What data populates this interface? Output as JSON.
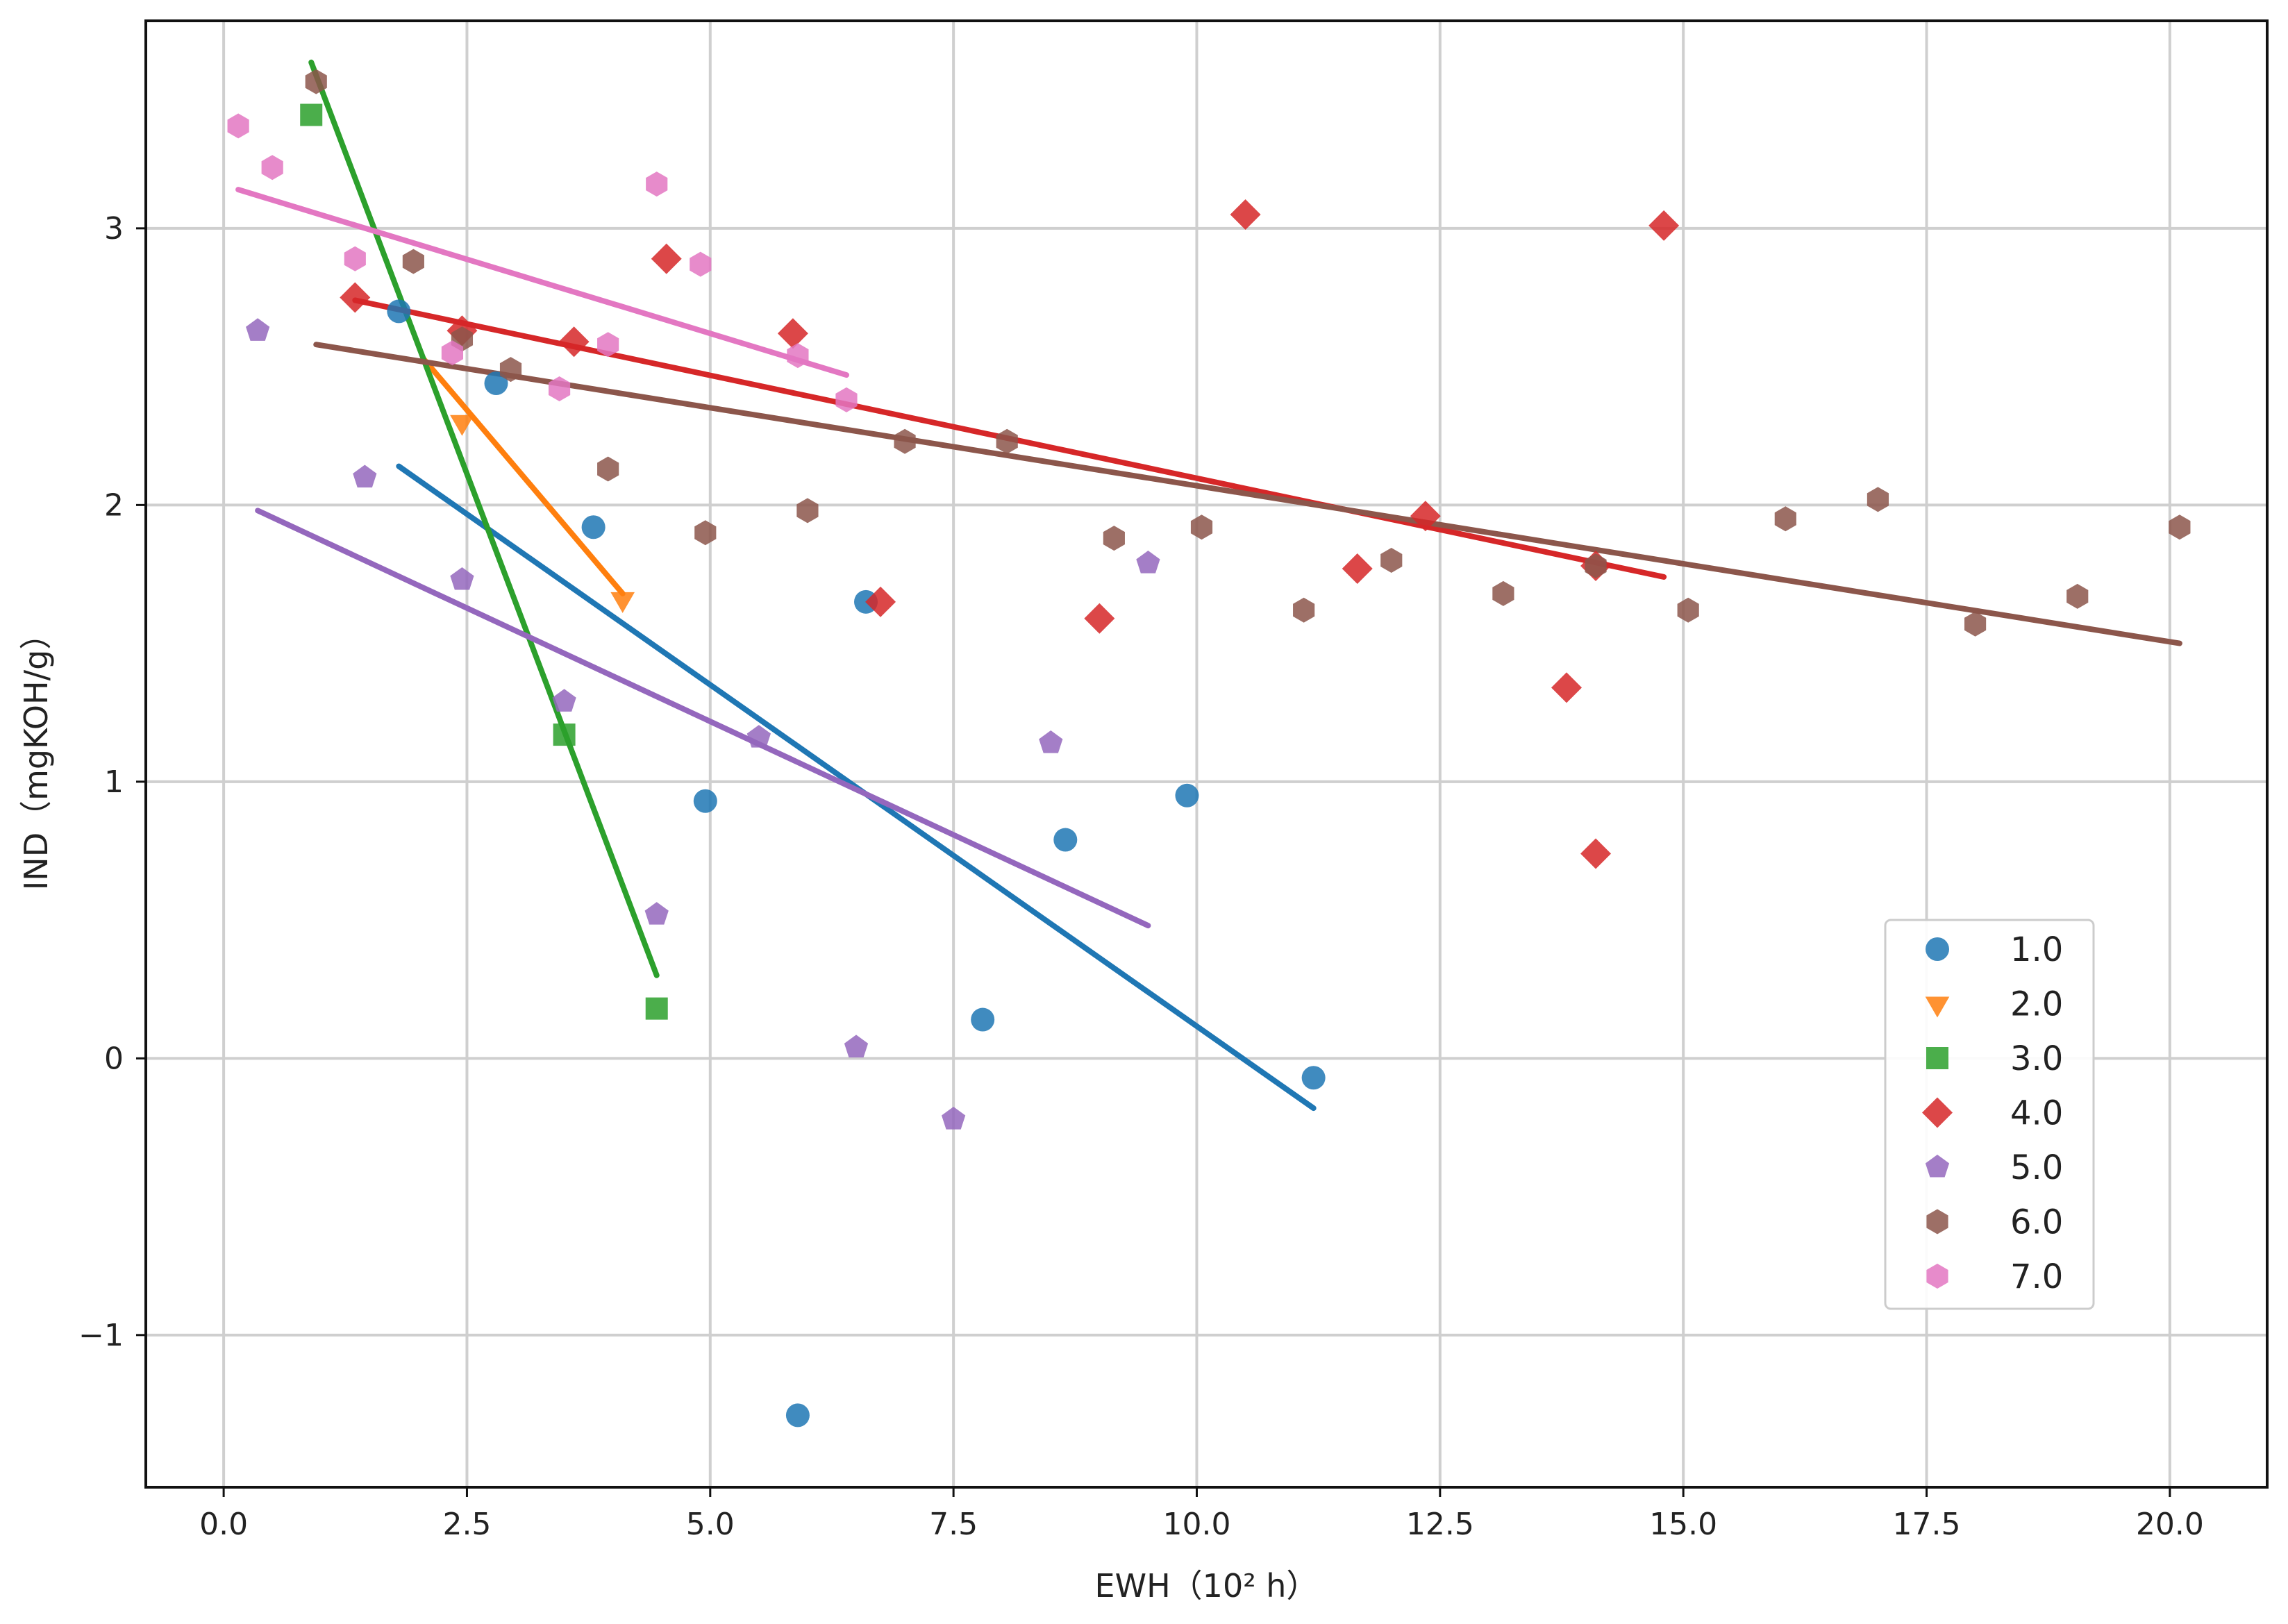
{
  "chart_data": {
    "type": "scatter",
    "title": "",
    "xlabel": "EWH（10² h）",
    "ylabel": "IND（mgKOH/g）",
    "xlim": [
      -0.8,
      21.0
    ],
    "ylim": [
      -1.55,
      3.75
    ],
    "grid": true,
    "legend_position": "lower-right",
    "xticks": [
      {
        "value": 0,
        "label": "0.0"
      },
      {
        "value": 2.5,
        "label": "2.5"
      },
      {
        "value": 5,
        "label": "5.0"
      },
      {
        "value": 7.5,
        "label": "7.5"
      },
      {
        "value": 10,
        "label": "10.0"
      },
      {
        "value": 12.5,
        "label": "12.5"
      },
      {
        "value": 15,
        "label": "15.0"
      },
      {
        "value": 17.5,
        "label": "17.5"
      },
      {
        "value": 20,
        "label": "20.0"
      }
    ],
    "yticks": [
      {
        "value": -1,
        "label": "−1"
      },
      {
        "value": 0,
        "label": "0"
      },
      {
        "value": 1,
        "label": "1"
      },
      {
        "value": 2,
        "label": "2"
      },
      {
        "value": 3,
        "label": "3"
      }
    ],
    "series": [
      {
        "name": "1.0",
        "color": "#1f77b4",
        "marker": "circle",
        "points": [
          [
            1.8,
            2.7
          ],
          [
            2.8,
            2.44
          ],
          [
            3.8,
            1.92
          ],
          [
            4.95,
            0.93
          ],
          [
            5.9,
            -1.29
          ],
          [
            6.6,
            1.65
          ],
          [
            7.8,
            0.14
          ],
          [
            8.65,
            0.79
          ],
          [
            9.9,
            0.95
          ],
          [
            11.2,
            -0.07
          ]
        ],
        "fit": [
          [
            1.8,
            2.14
          ],
          [
            11.2,
            -0.18
          ]
        ]
      },
      {
        "name": "2.0",
        "color": "#ff7f0e",
        "marker": "triangle-down",
        "points": [
          [
            2.45,
            2.3
          ],
          [
            4.1,
            1.66
          ]
        ],
        "fit": [
          [
            2.05,
            2.53
          ],
          [
            4.1,
            1.68
          ]
        ]
      },
      {
        "name": "3.0",
        "color": "#2ca02c",
        "marker": "square",
        "points": [
          [
            0.9,
            3.41
          ],
          [
            3.5,
            1.17
          ],
          [
            4.45,
            0.18
          ]
        ],
        "fit": [
          [
            0.9,
            3.6
          ],
          [
            4.45,
            0.3
          ]
        ]
      },
      {
        "name": "4.0",
        "color": "#d62728",
        "marker": "diamond",
        "points": [
          [
            1.35,
            2.75
          ],
          [
            2.45,
            2.63
          ],
          [
            3.6,
            2.59
          ],
          [
            4.55,
            2.89
          ],
          [
            5.85,
            2.62
          ],
          [
            6.75,
            1.65
          ],
          [
            9.0,
            1.59
          ],
          [
            10.5,
            3.05
          ],
          [
            11.65,
            1.77
          ],
          [
            12.35,
            1.96
          ],
          [
            13.8,
            1.34
          ],
          [
            14.1,
            1.78
          ],
          [
            14.1,
            0.74
          ],
          [
            14.8,
            3.01
          ]
        ],
        "fit": [
          [
            1.35,
            2.74
          ],
          [
            14.8,
            1.74
          ]
        ]
      },
      {
        "name": "5.0",
        "color": "#9467bd",
        "marker": "pentagon",
        "points": [
          [
            0.35,
            2.63
          ],
          [
            1.45,
            2.1
          ],
          [
            2.45,
            1.73
          ],
          [
            3.5,
            1.29
          ],
          [
            5.5,
            1.16
          ],
          [
            4.45,
            0.52
          ],
          [
            6.5,
            0.04
          ],
          [
            7.5,
            -0.22
          ],
          [
            8.5,
            1.14
          ],
          [
            9.5,
            1.79
          ]
        ],
        "fit": [
          [
            0.35,
            1.98
          ],
          [
            9.5,
            0.48
          ]
        ]
      },
      {
        "name": "6.0",
        "color": "#8c564b",
        "marker": "hexagon",
        "points": [
          [
            0.95,
            3.53
          ],
          [
            1.95,
            2.88
          ],
          [
            2.45,
            2.6
          ],
          [
            2.95,
            2.49
          ],
          [
            3.95,
            2.13
          ],
          [
            4.95,
            1.9
          ],
          [
            6.0,
            1.98
          ],
          [
            7.0,
            2.23
          ],
          [
            8.05,
            2.23
          ],
          [
            9.15,
            1.88
          ],
          [
            10.05,
            1.92
          ],
          [
            11.1,
            1.62
          ],
          [
            12.0,
            1.8
          ],
          [
            13.15,
            1.68
          ],
          [
            14.1,
            1.78
          ],
          [
            15.05,
            1.62
          ],
          [
            16.05,
            1.95
          ],
          [
            17.0,
            2.02
          ],
          [
            18.0,
            1.57
          ],
          [
            19.05,
            1.67
          ],
          [
            20.1,
            1.92
          ]
        ],
        "fit": [
          [
            0.95,
            2.58
          ],
          [
            20.1,
            1.5
          ]
        ]
      },
      {
        "name": "7.0",
        "color": "#e377c2",
        "marker": "hexagon",
        "points": [
          [
            0.15,
            3.37
          ],
          [
            0.5,
            3.22
          ],
          [
            1.35,
            2.89
          ],
          [
            2.35,
            2.55
          ],
          [
            3.45,
            2.42
          ],
          [
            3.95,
            2.58
          ],
          [
            4.45,
            3.16
          ],
          [
            4.9,
            2.87
          ],
          [
            5.9,
            2.54
          ],
          [
            6.4,
            2.38
          ]
        ],
        "fit": [
          [
            0.15,
            3.14
          ],
          [
            6.4,
            2.47
          ]
        ]
      }
    ]
  }
}
